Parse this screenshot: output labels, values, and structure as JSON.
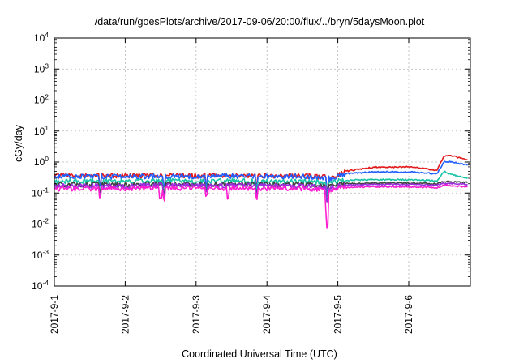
{
  "chart_data": {
    "type": "line",
    "title": "/data/run/goesPlots/archive/2017-09-06/20:00/flux/../bryn/5daysMoon.plot",
    "xlabel": "Coordinated Universal Time (UTC)",
    "ylabel": "cGy/day",
    "yscale": "log",
    "ylim": [
      0.0001,
      10000
    ],
    "xlim": [
      "2017-09-01",
      "2017-09-06 20:00"
    ],
    "x_tick_labels": [
      "2017-9-1",
      "2017-9-2",
      "2017-9-3",
      "2017-9-4",
      "2017-9-5",
      "2017-9-6"
    ],
    "y_ticks": [
      {
        "base": "10",
        "exp": "-4"
      },
      {
        "base": "10",
        "exp": "-3"
      },
      {
        "base": "10",
        "exp": "-2"
      },
      {
        "base": "10",
        "exp": "-1"
      },
      {
        "base": "10",
        "exp": "0"
      },
      {
        "base": "10",
        "exp": "1"
      },
      {
        "base": "10",
        "exp": "2"
      },
      {
        "base": "10",
        "exp": "3"
      },
      {
        "base": "10",
        "exp": "4"
      }
    ],
    "grid": true,
    "x_days": [
      0,
      0.5,
      1,
      1.5,
      2,
      2.5,
      3,
      3.5,
      3.9,
      4.0,
      4.1,
      4.5,
      5.0,
      5.4,
      5.5,
      5.6,
      5.83
    ],
    "series": [
      {
        "color": "#e31a1c",
        "values": [
          0.36,
          0.37,
          0.36,
          0.38,
          0.37,
          0.38,
          0.36,
          0.37,
          0.32,
          0.38,
          0.5,
          0.68,
          0.7,
          0.55,
          1.6,
          1.6,
          1.2
        ]
      },
      {
        "color": "#1f5fff",
        "values": [
          0.34,
          0.35,
          0.34,
          0.36,
          0.35,
          0.36,
          0.34,
          0.35,
          0.3,
          0.34,
          0.42,
          0.48,
          0.48,
          0.42,
          1.05,
          1.0,
          0.8
        ]
      },
      {
        "color": "#16c4a4",
        "values": [
          0.24,
          0.24,
          0.24,
          0.25,
          0.24,
          0.25,
          0.24,
          0.24,
          0.22,
          0.24,
          0.26,
          0.27,
          0.27,
          0.25,
          0.5,
          0.4,
          0.3
        ]
      },
      {
        "color": "#404040",
        "values": [
          0.19,
          0.19,
          0.19,
          0.2,
          0.19,
          0.2,
          0.19,
          0.19,
          0.17,
          0.19,
          0.2,
          0.21,
          0.21,
          0.2,
          0.24,
          0.23,
          0.22
        ]
      },
      {
        "color": "#9b2de0",
        "values": [
          0.17,
          0.17,
          0.17,
          0.18,
          0.17,
          0.18,
          0.17,
          0.17,
          0.15,
          0.17,
          0.18,
          0.19,
          0.19,
          0.18,
          0.21,
          0.2,
          0.19
        ]
      },
      {
        "color": "#ff1fd0",
        "values": [
          0.14,
          0.14,
          0.14,
          0.15,
          0.14,
          0.15,
          0.14,
          0.14,
          0.13,
          0.14,
          0.15,
          0.16,
          0.16,
          0.15,
          0.18,
          0.17,
          0.16
        ]
      }
    ]
  }
}
